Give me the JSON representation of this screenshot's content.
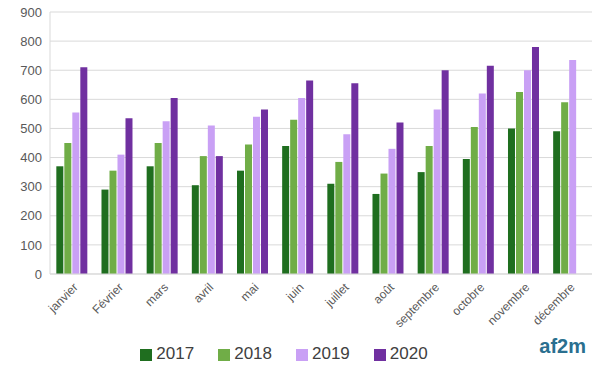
{
  "chart_data": {
    "type": "bar",
    "categories": [
      "janvier",
      "Février",
      "mars",
      "avril",
      "mai",
      "juin",
      "juillet",
      "août",
      "septembre",
      "octobre",
      "novembre",
      "décembre"
    ],
    "series": [
      {
        "name": "2017",
        "color": "#1f6e1f",
        "values": [
          370,
          290,
          370,
          305,
          355,
          440,
          310,
          275,
          350,
          395,
          500,
          490
        ]
      },
      {
        "name": "2018",
        "color": "#70ad47",
        "values": [
          450,
          355,
          450,
          405,
          445,
          530,
          385,
          345,
          440,
          505,
          625,
          590
        ]
      },
      {
        "name": "2019",
        "color": "#c9a0f5",
        "values": [
          555,
          410,
          525,
          510,
          540,
          605,
          480,
          430,
          565,
          620,
          700,
          735
        ]
      },
      {
        "name": "2020",
        "color": "#7030a0",
        "values": [
          710,
          535,
          605,
          405,
          565,
          665,
          655,
          520,
          700,
          715,
          780,
          null
        ]
      }
    ],
    "ylim": [
      0,
      900
    ],
    "yticks": [
      0,
      100,
      200,
      300,
      400,
      500,
      600,
      700,
      800,
      900
    ],
    "grid": true,
    "legend": "bottom",
    "annotations": [
      "af2m"
    ]
  }
}
